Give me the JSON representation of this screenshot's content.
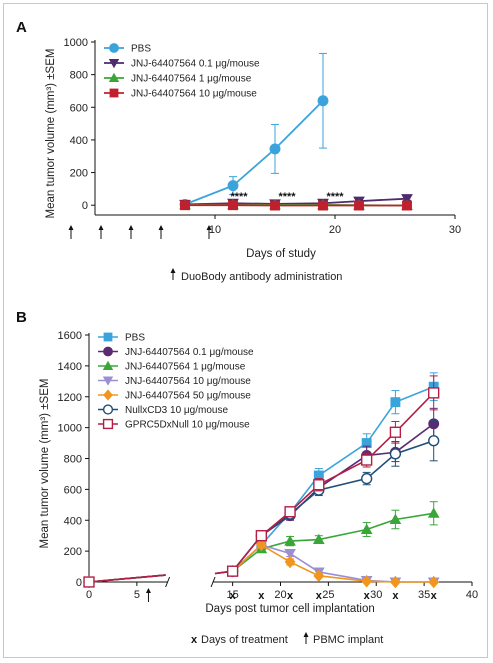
{
  "chart_data": [
    {
      "panel": "A",
      "type": "line",
      "xlabel": "Days of study",
      "ylabel": "Mean tumor volume (mm³) ±SEM",
      "xlim": [
        0,
        30
      ],
      "ylim": [
        -60,
        1000
      ],
      "xticks": [
        10,
        20,
        30
      ],
      "yticks": [
        0,
        200,
        400,
        600,
        800,
        1000
      ],
      "legend_position": "top-left",
      "series": [
        {
          "name": "PBS",
          "color": "#3ba3dc",
          "marker": "circle",
          "x": [
            7.5,
            11.5,
            15,
            19
          ],
          "y": [
            5,
            120,
            345,
            640
          ],
          "err": [
            8,
            55,
            150,
            290
          ]
        },
        {
          "name": "JNJ-64407564 0.1 μg/mouse",
          "color": "#4e2a6e",
          "marker": "triangle-down",
          "x": [
            7.5,
            11.5,
            15,
            19,
            22,
            26
          ],
          "y": [
            5,
            12,
            8,
            12,
            25,
            40
          ],
          "err": [
            3,
            6,
            5,
            6,
            8,
            10
          ]
        },
        {
          "name": "JNJ-64407564 1 μg/mouse",
          "color": "#3aa63a",
          "marker": "triangle-up",
          "x": [
            7.5,
            11.5,
            15,
            19,
            22,
            26
          ],
          "y": [
            3,
            3,
            2,
            2,
            0,
            -2
          ],
          "err": [
            3,
            3,
            3,
            3,
            3,
            3
          ]
        },
        {
          "name": "JNJ-64407564 10 μg/mouse",
          "color": "#c0202e",
          "marker": "square",
          "x": [
            7.5,
            11.5,
            15,
            19,
            22,
            26
          ],
          "y": [
            0,
            0,
            -2,
            -2,
            -2,
            -2
          ],
          "err": [
            2,
            2,
            2,
            2,
            2,
            2
          ]
        }
      ],
      "annotations": [
        {
          "text": "****",
          "x": 12,
          "y": 55
        },
        {
          "text": "****",
          "x": 16,
          "y": 55
        },
        {
          "text": "****",
          "x": 20,
          "y": 55
        }
      ],
      "dosing_days": [
        -2,
        0.5,
        3,
        5.5,
        9.5
      ],
      "note": "DuoBody antibody administration"
    },
    {
      "panel": "B",
      "type": "line",
      "xlabel": "Days post tumor cell implantation",
      "ylabel": "Mean tumor volume (mm³) ±SEM",
      "xlim": [
        0,
        40
      ],
      "ylim": [
        0,
        1600
      ],
      "xticks": [
        0,
        5,
        15,
        20,
        25,
        30,
        35,
        40
      ],
      "yticks": [
        0,
        200,
        400,
        600,
        800,
        1000,
        1200,
        1400,
        1600
      ],
      "legend_position": "top-left",
      "axis_break": [
        8,
        14
      ],
      "series": [
        {
          "name": "PBS",
          "color": "#3ba3dc",
          "marker": "square",
          "x": [
            0,
            15,
            18,
            21,
            24,
            29,
            32,
            36
          ],
          "y": [
            0,
            70,
            240,
            450,
            690,
            900,
            1165,
            1265
          ],
          "err": [
            0,
            10,
            25,
            30,
            45,
            60,
            75,
            90
          ]
        },
        {
          "name": "JNJ-64407564 0.1 μg/mouse",
          "color": "#5a2a73",
          "marker": "circle",
          "x": [
            0,
            15,
            18,
            21,
            24,
            29,
            32,
            36
          ],
          "y": [
            0,
            70,
            300,
            430,
            610,
            820,
            840,
            1025
          ],
          "err": [
            0,
            8,
            25,
            30,
            40,
            60,
            60,
            100
          ]
        },
        {
          "name": "JNJ-64407564 1 μg/mouse",
          "color": "#3aa63a",
          "marker": "triangle-up",
          "x": [
            0,
            15,
            18,
            21,
            24,
            29,
            32,
            36
          ],
          "y": [
            0,
            70,
            215,
            265,
            275,
            340,
            405,
            445
          ],
          "err": [
            0,
            8,
            20,
            30,
            25,
            45,
            60,
            75
          ]
        },
        {
          "name": "JNJ-64407564 10 μg/mouse",
          "color": "#9b8fd4",
          "marker": "triangle-down",
          "x": [
            0,
            15,
            18,
            21,
            24,
            29,
            32,
            36
          ],
          "y": [
            0,
            70,
            240,
            185,
            65,
            10,
            0,
            0
          ],
          "err": [
            0,
            8,
            20,
            20,
            15,
            5,
            0,
            0
          ]
        },
        {
          "name": "JNJ-64407564 50 μg/mouse",
          "color": "#f0961e",
          "marker": "diamond",
          "x": [
            0,
            15,
            18,
            21,
            24,
            29,
            32,
            36
          ],
          "y": [
            0,
            70,
            240,
            130,
            40,
            5,
            0,
            0
          ],
          "err": [
            0,
            8,
            20,
            20,
            10,
            5,
            0,
            0
          ]
        },
        {
          "name": "NullxCD3 10 μg/mouse",
          "color": "#1f4e79",
          "marker": "circle-open",
          "x": [
            0,
            15,
            18,
            21,
            24,
            29,
            32,
            36
          ],
          "y": [
            0,
            70,
            300,
            440,
            595,
            670,
            830,
            915
          ],
          "err": [
            0,
            8,
            25,
            30,
            35,
            40,
            80,
            130
          ]
        },
        {
          "name": "GPRC5DxNull 10 μg/mouse",
          "color": "#b41e46",
          "marker": "square-open",
          "x": [
            0,
            15,
            18,
            21,
            24,
            29,
            32,
            36
          ],
          "y": [
            0,
            70,
            300,
            455,
            630,
            790,
            970,
            1225
          ],
          "err": [
            0,
            8,
            25,
            30,
            40,
            45,
            70,
            110
          ]
        }
      ],
      "treatment_days": [
        15,
        18,
        21,
        24,
        29,
        32,
        36
      ],
      "pbmc_day": 6,
      "note_treatment": "Days of treatment",
      "note_pbmc": "PBMC implant"
    }
  ]
}
